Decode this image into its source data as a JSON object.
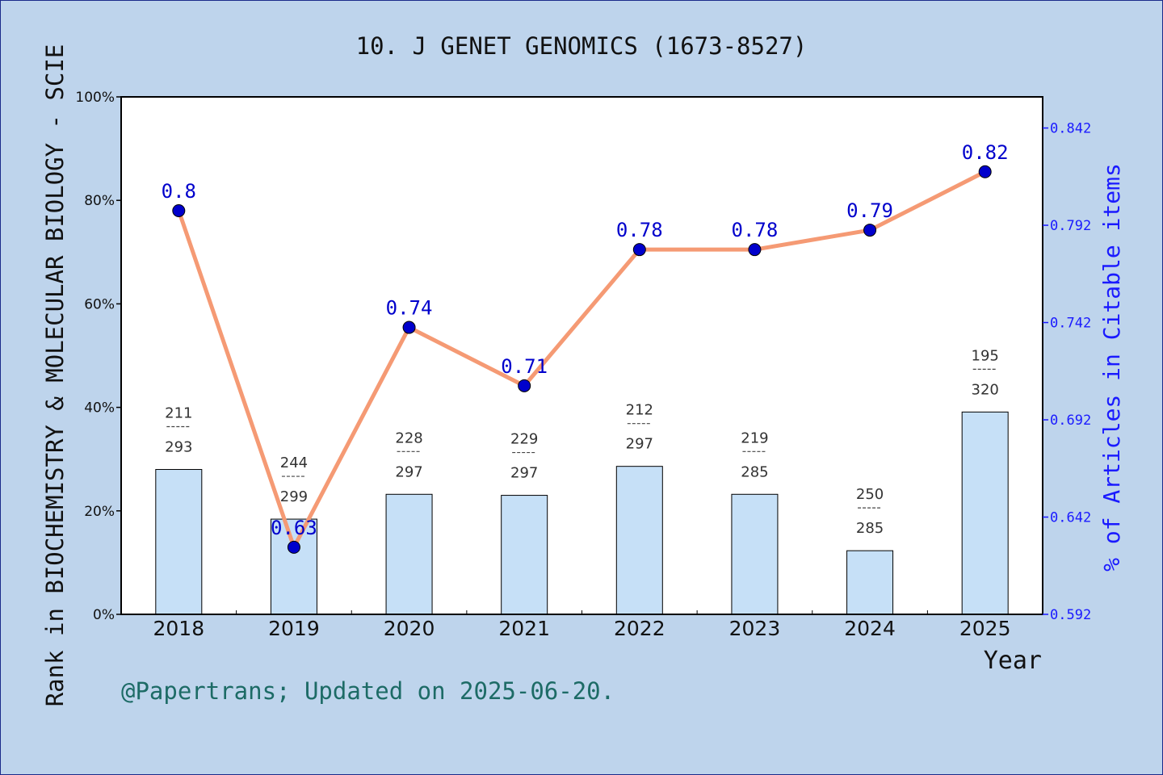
{
  "chart_data": {
    "type": "bar",
    "title": "10. J GENET GENOMICS (1673-8527)",
    "xlabel": "Year",
    "ylabel": "Rank in BIOCHEMISTRY & MOLECULAR BIOLOGY - SCIE",
    "y2label": "% of Articles in Citable items",
    "footnote": "@Papertrans; Updated on 2025-06-20.",
    "categories": [
      "2018",
      "2019",
      "2020",
      "2021",
      "2022",
      "2023",
      "2024",
      "2025"
    ],
    "ylim": [
      0,
      100
    ],
    "yticks": [
      "0%",
      "20%",
      "40%",
      "60%",
      "80%",
      "100%"
    ],
    "y2lim": [
      0.592,
      0.858
    ],
    "y2ticks": [
      "0.592",
      "0.642",
      "0.692",
      "0.742",
      "0.792",
      "0.842"
    ],
    "grid": false,
    "series": [
      {
        "name": "",
        "kind": "bar",
        "axis": "left",
        "values": [
          28.0,
          18.4,
          23.2,
          23.0,
          28.6,
          23.2,
          12.3,
          39.1
        ],
        "rank": [
          "211",
          "244",
          "228",
          "229",
          "212",
          "219",
          "250",
          "195"
        ],
        "total": [
          "293",
          "299",
          "297",
          "297",
          "297",
          "285",
          "285",
          "320"
        ],
        "color": "#c6e0f7"
      },
      {
        "name": "",
        "kind": "line",
        "axis": "right",
        "values": [
          0.8,
          0.63,
          0.74,
          0.71,
          0.78,
          0.78,
          0.79,
          0.82
        ],
        "plot_values": [
          0.7995,
          0.6265,
          0.7395,
          0.7095,
          0.7795,
          0.7795,
          0.7895,
          0.8195
        ],
        "color": "#f59a74",
        "marker_color": "#0000cc"
      }
    ]
  }
}
